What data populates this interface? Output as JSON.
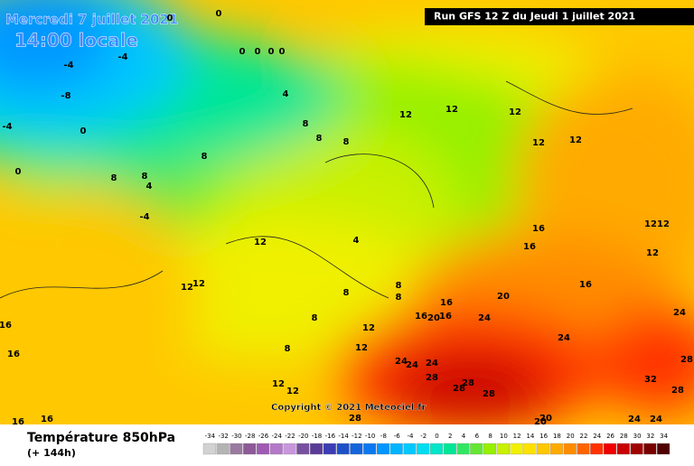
{
  "map": {
    "date": "Mercredi 7 juillet 2021",
    "time": "14:00 locale",
    "run": "Run GFS 12 Z du Jeudi 1 juillet 2021",
    "copyright": "Copyright © 2021 Meteociel.fr",
    "variable": "Température 850hPa",
    "lead": "(+ 144h)",
    "contour_labels": [
      0,
      0,
      0,
      0,
      0,
      0,
      -4,
      -4,
      -8,
      -4,
      0,
      0,
      4,
      8,
      8,
      8,
      12,
      12,
      12,
      12,
      12,
      8,
      8,
      8,
      4,
      -4,
      12,
      12,
      12,
      4,
      8,
      8,
      8,
      8,
      16,
      16,
      20,
      16,
      20,
      16,
      16,
      16,
      12,
      12,
      12,
      24,
      24,
      24,
      24,
      24,
      28,
      28,
      28,
      28,
      28,
      28,
      28,
      32,
      12,
      12,
      8,
      12,
      12,
      16,
      16,
      16,
      16,
      24,
      24,
      20,
      20,
      24
    ]
  },
  "colorbar": {
    "values": [
      -34,
      -32,
      -30,
      -28,
      -26,
      -24,
      -22,
      -20,
      -18,
      -16,
      -14,
      -12,
      -10,
      -8,
      -6,
      -4,
      -2,
      0,
      2,
      4,
      6,
      8,
      10,
      12,
      14,
      16,
      18,
      20,
      22,
      24,
      26,
      28,
      30,
      32,
      34
    ],
    "colors": [
      "#d2d2d2",
      "#b4b4b4",
      "#9a7aa0",
      "#8c5a96",
      "#a05ab4",
      "#b478c8",
      "#c896dc",
      "#7850a0",
      "#5a3c96",
      "#3c3cb4",
      "#1e50c8",
      "#1464dc",
      "#0a78f0",
      "#0096ff",
      "#00b4ff",
      "#00c8ff",
      "#00dcf0",
      "#00e6c8",
      "#00e696",
      "#32e664",
      "#64e632",
      "#96f000",
      "#c8f000",
      "#f0f000",
      "#ffe100",
      "#ffc800",
      "#ffaa00",
      "#ff8c00",
      "#ff6400",
      "#ff3200",
      "#f00000",
      "#c80000",
      "#a00000",
      "#780000",
      "#500000"
    ]
  }
}
